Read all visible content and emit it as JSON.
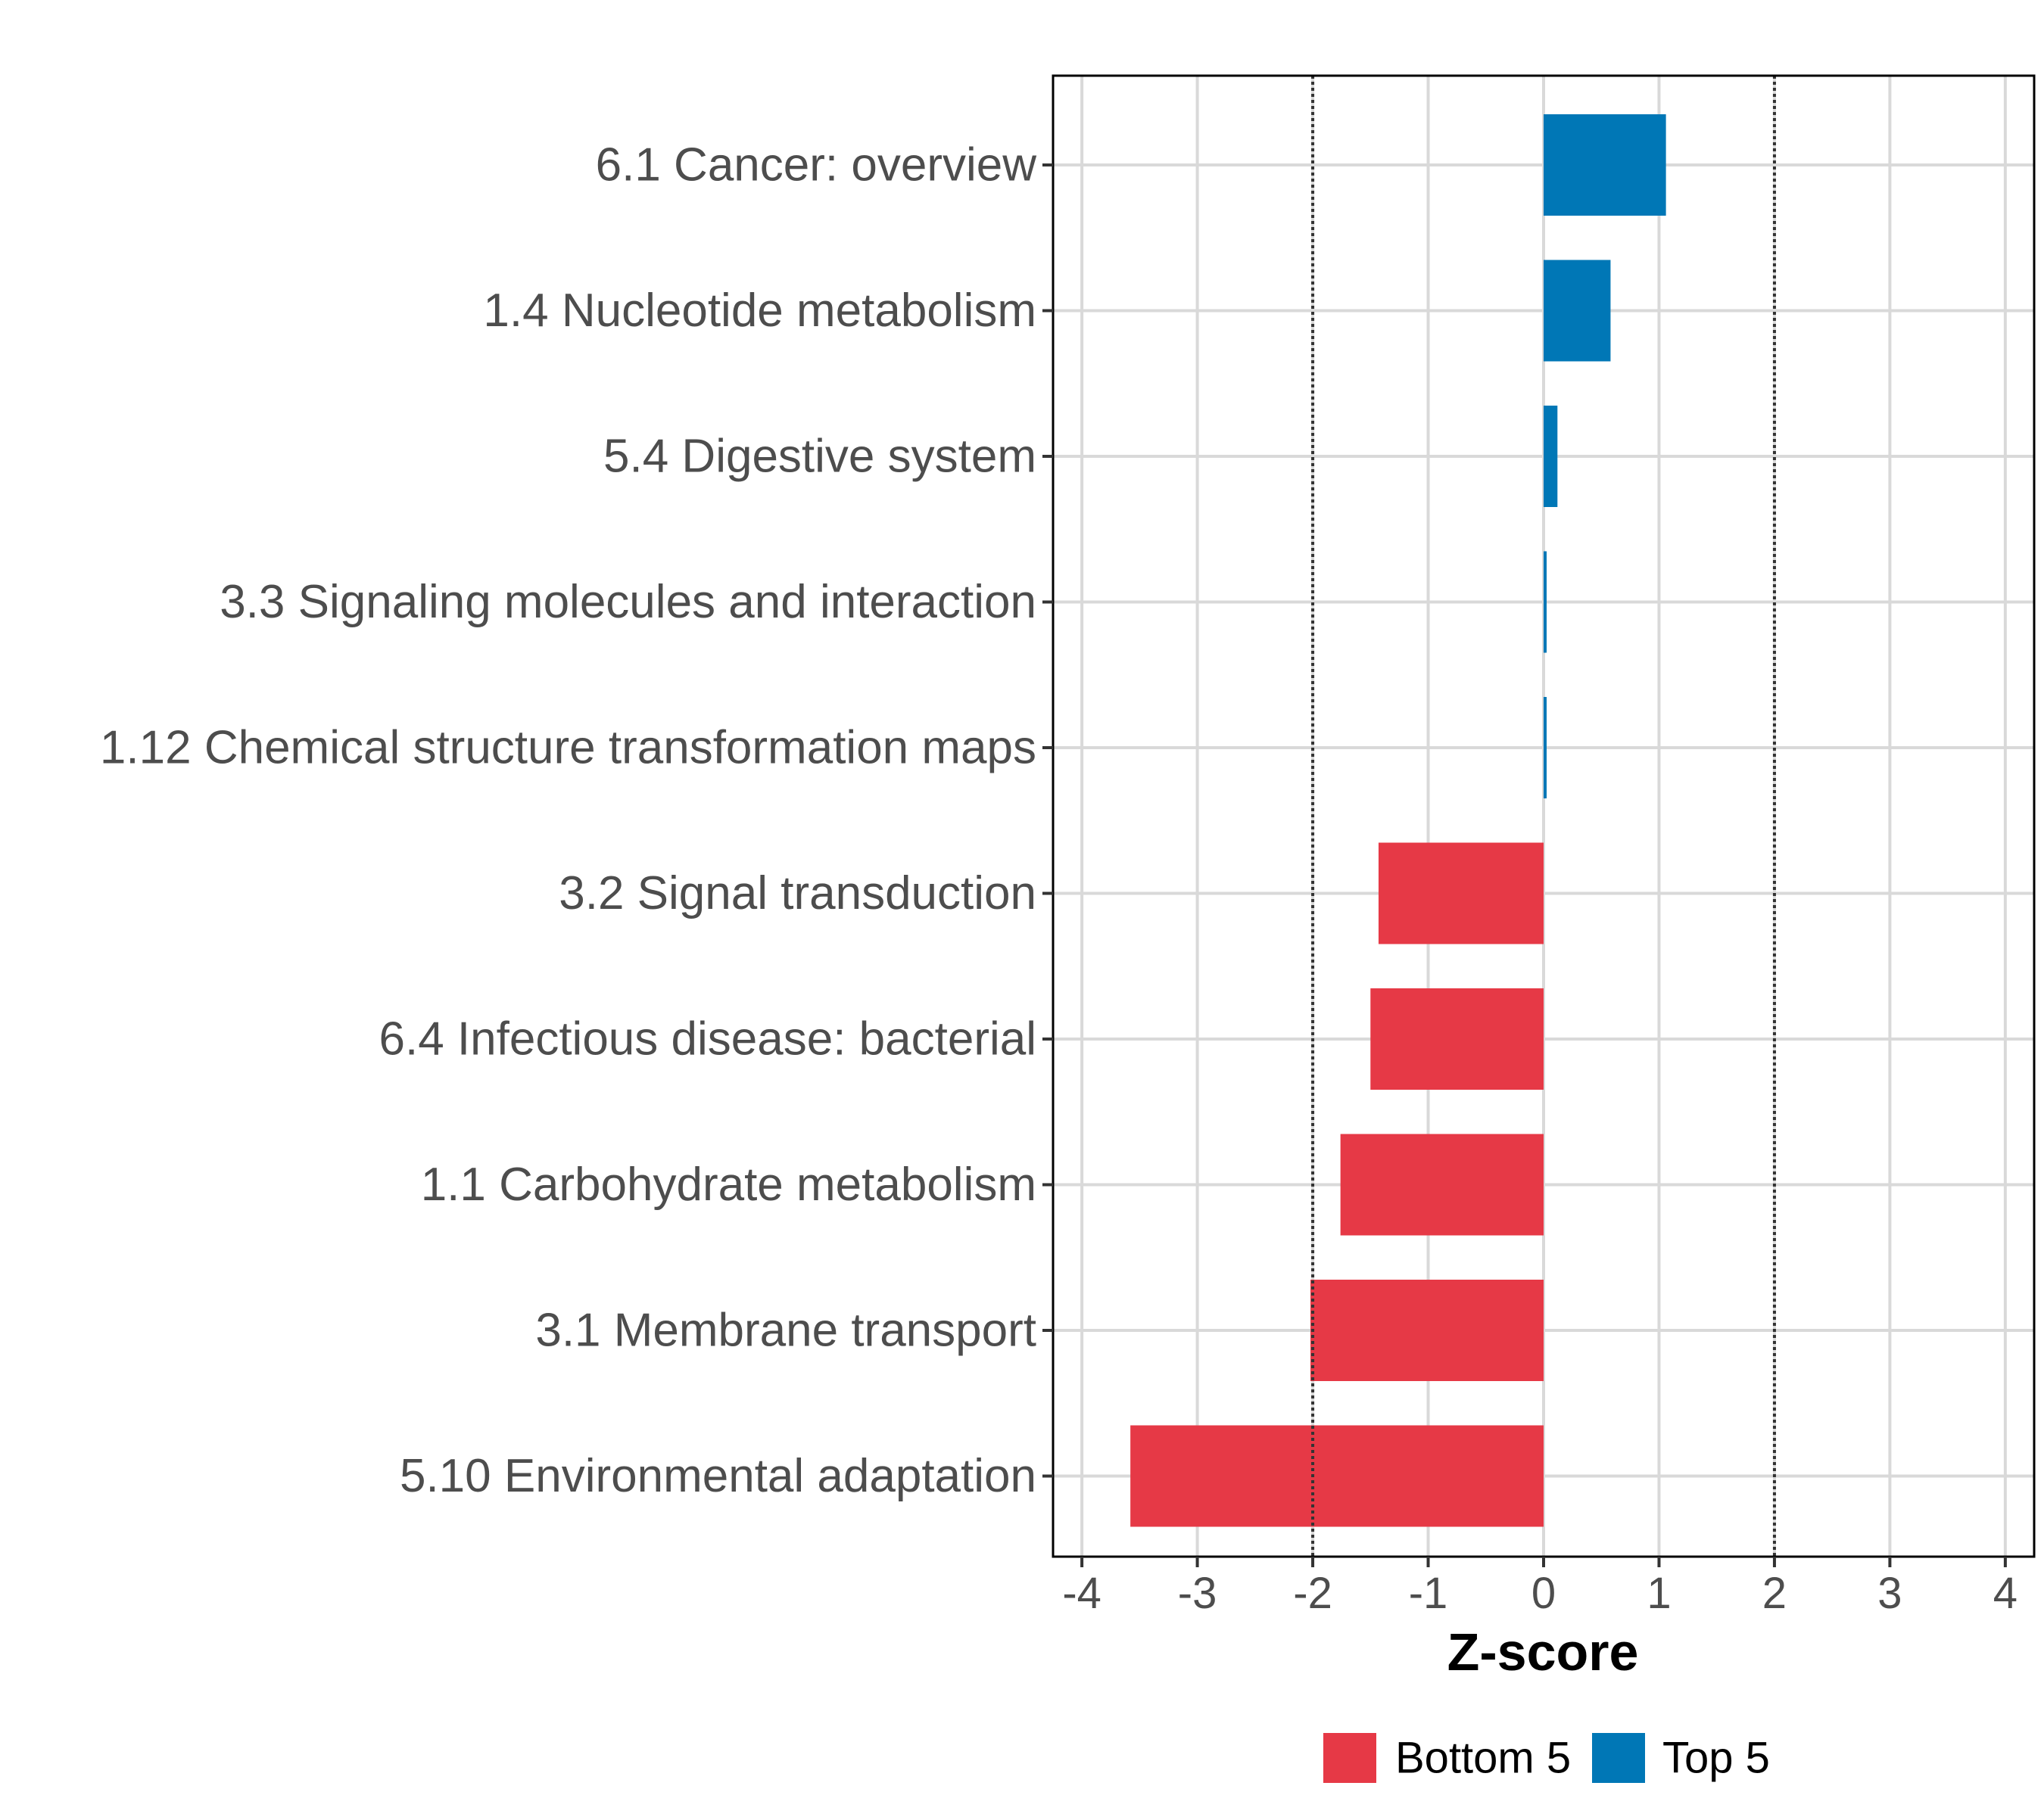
{
  "chart_data": {
    "type": "bar",
    "orientation": "horizontal",
    "categories": [
      "6.1 Cancer: overview",
      "1.4 Nucleotide metabolism",
      "5.4 Digestive system",
      "3.3 Signaling molecules and interaction",
      "1.12 Chemical structure transformation maps",
      "3.2 Signal transduction",
      "6.4 Infectious disease: bacterial",
      "1.1 Carbohydrate metabolism",
      "3.1 Membrane transport",
      "5.10 Environmental adaptation"
    ],
    "values": [
      1.06,
      0.58,
      0.12,
      0.02,
      0.01,
      -1.43,
      -1.5,
      -1.76,
      -2.02,
      -3.58
    ],
    "groups": [
      "Top 5",
      "Top 5",
      "Top 5",
      "Top 5",
      "Top 5",
      "Bottom 5",
      "Bottom 5",
      "Bottom 5",
      "Bottom 5",
      "Bottom 5"
    ],
    "xlabel": "Z-score",
    "ylabel": "",
    "xlim": [
      -4.25,
      4.25
    ],
    "xticks": [
      -4,
      -3,
      -2,
      -1,
      0,
      1,
      2,
      3,
      4
    ],
    "xtick_labels": [
      "-4",
      "-3",
      "-2",
      "-1",
      "0",
      "1",
      "2",
      "3",
      "4"
    ],
    "reference_lines": [
      -2,
      2
    ],
    "grid": true,
    "legend": {
      "position": "bottom",
      "entries": [
        {
          "label": "Bottom 5",
          "color": "#e63946"
        },
        {
          "label": "Top 5",
          "color": "#0077b6"
        }
      ]
    }
  }
}
